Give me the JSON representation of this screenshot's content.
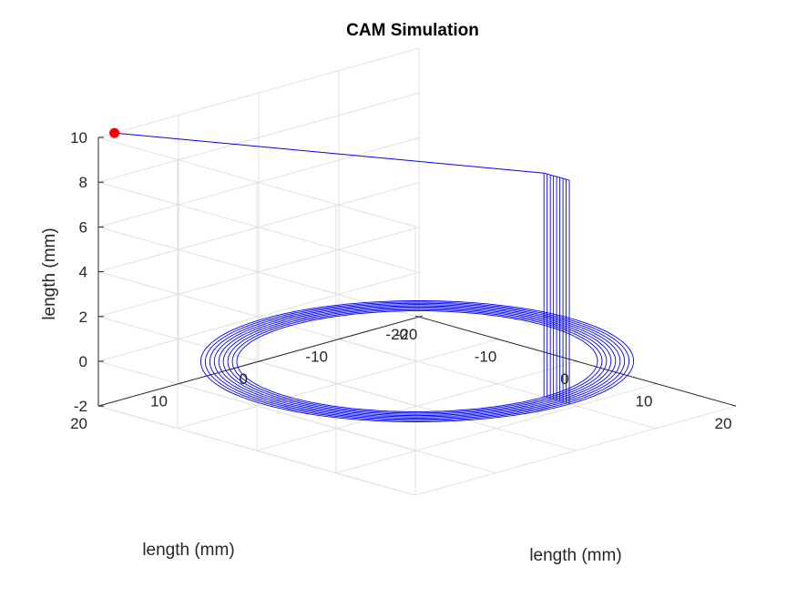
{
  "chart_data": {
    "type": "line3d",
    "title": "CAM Simulation",
    "xlabel": "length (mm)",
    "ylabel": "length (mm)",
    "zlabel": "length (mm)",
    "xlim": [
      -20,
      20
    ],
    "ylim": [
      -20,
      20
    ],
    "zlim": [
      -2,
      10
    ],
    "xticks": [
      "-20",
      "-10",
      "0",
      "10",
      "20"
    ],
    "yticks": [
      "-20",
      "-10",
      "0",
      "10",
      "20"
    ],
    "zticks": [
      "-2",
      "0",
      "2",
      "4",
      "6",
      "8",
      "10"
    ],
    "grid": true,
    "line_color": "#0000ff",
    "marker_color": "#ff0000",
    "toolpath": {
      "description_units": "mm",
      "center": [
        0,
        0
      ],
      "passes": [
        {
          "radius": 16.0,
          "z": 0
        },
        {
          "radius": 16.4,
          "z": 0
        },
        {
          "radius": 16.8,
          "z": 0
        },
        {
          "radius": 17.2,
          "z": 0
        },
        {
          "radius": 17.6,
          "z": 0
        },
        {
          "radius": 18.0,
          "z": 0
        },
        {
          "radius": 18.4,
          "z": 0
        },
        {
          "radius": 18.8,
          "z": 0
        },
        {
          "radius": 19.2,
          "z": 0
        }
      ],
      "pass_start_angle_deg": 0,
      "retract_height": 10
    },
    "tool_position": {
      "x": -20,
      "y": 18,
      "z": 10
    }
  }
}
